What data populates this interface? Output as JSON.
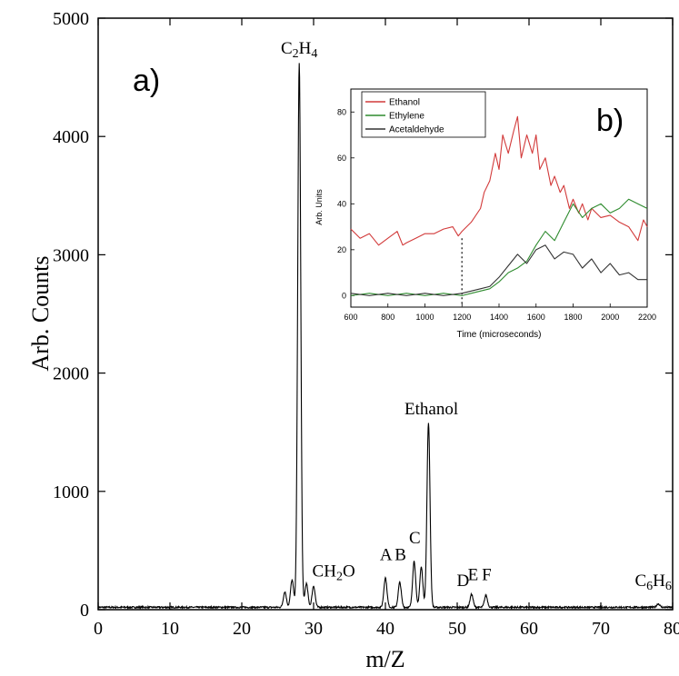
{
  "chart_data": [
    {
      "id": "main",
      "panel_label": "a)",
      "type": "line",
      "xlabel": "m/Z",
      "ylabel": "Arb. Counts",
      "xlim": [
        0,
        80
      ],
      "ylim": [
        0,
        5000
      ],
      "xticks": [
        0,
        10,
        20,
        30,
        40,
        50,
        60,
        70,
        80
      ],
      "yticks": [
        0,
        1000,
        2000,
        3000,
        4000,
        5000
      ],
      "grid": false,
      "baseline": 20,
      "peaks": [
        {
          "x": 26,
          "y": 150
        },
        {
          "x": 27,
          "y": 250
        },
        {
          "x": 28,
          "y": 4620
        },
        {
          "x": 29,
          "y": 220
        },
        {
          "x": 30,
          "y": 200
        },
        {
          "x": 40,
          "y": 270
        },
        {
          "x": 42,
          "y": 230
        },
        {
          "x": 44,
          "y": 410
        },
        {
          "x": 45,
          "y": 360
        },
        {
          "x": 46,
          "y": 1580
        },
        {
          "x": 52,
          "y": 130
        },
        {
          "x": 54,
          "y": 120
        },
        {
          "x": 78,
          "y": 50
        }
      ],
      "annotations": [
        {
          "key": "c2h4",
          "x": 28,
          "y": 4700,
          "parts": [
            {
              "t": "C"
            },
            {
              "t": "2",
              "sub": true
            },
            {
              "t": "H"
            },
            {
              "t": "4",
              "sub": true
            }
          ]
        },
        {
          "key": "ch2o",
          "x": 32.8,
          "y": 280,
          "parts": [
            {
              "t": "CH"
            },
            {
              "t": "2",
              "sub": true
            },
            {
              "t": "O"
            }
          ]
        },
        {
          "key": "ethanol",
          "x": 46.4,
          "y": 1650,
          "parts": [
            {
              "t": "Ethanol"
            }
          ]
        },
        {
          "key": "a",
          "x": 40.1,
          "y": 420,
          "parts": [
            {
              "t": "A"
            }
          ]
        },
        {
          "key": "b",
          "x": 42.1,
          "y": 420,
          "parts": [
            {
              "t": "B"
            }
          ]
        },
        {
          "key": "c",
          "x": 44.1,
          "y": 560,
          "parts": [
            {
              "t": "C"
            }
          ]
        },
        {
          "key": "d",
          "x": 50.8,
          "y": 200,
          "parts": [
            {
              "t": "D"
            }
          ]
        },
        {
          "key": "e",
          "x": 52.2,
          "y": 250,
          "parts": [
            {
              "t": "E"
            }
          ]
        },
        {
          "key": "f",
          "x": 54.1,
          "y": 250,
          "parts": [
            {
              "t": "F"
            }
          ]
        },
        {
          "key": "c6h6",
          "x": 77.3,
          "y": 200,
          "parts": [
            {
              "t": "C"
            },
            {
              "t": "6",
              "sub": true
            },
            {
              "t": "H"
            },
            {
              "t": "6",
              "sub": true
            }
          ]
        }
      ]
    },
    {
      "id": "inset",
      "panel_label": "b)",
      "type": "line",
      "xlabel": "Time (microseconds)",
      "ylabel": "Arb. Units",
      "xlim": [
        600,
        2200
      ],
      "ylim": [
        -5,
        90
      ],
      "xticks": [
        600,
        800,
        1000,
        1200,
        1400,
        1600,
        1800,
        2000,
        2200
      ],
      "yticks": [
        0,
        20,
        40,
        60,
        80
      ],
      "grid": false,
      "legend": "top-left",
      "marker_line_x": 1200,
      "series": [
        {
          "name": "Ethanol",
          "color": "#d23a3a",
          "x": [
            600,
            650,
            700,
            750,
            800,
            850,
            880,
            900,
            950,
            1000,
            1050,
            1100,
            1150,
            1180,
            1200,
            1250,
            1300,
            1320,
            1350,
            1380,
            1400,
            1420,
            1450,
            1480,
            1500,
            1520,
            1550,
            1580,
            1600,
            1620,
            1650,
            1680,
            1700,
            1730,
            1750,
            1780,
            1800,
            1830,
            1850,
            1880,
            1900,
            1950,
            2000,
            2050,
            2100,
            2150,
            2180,
            2200
          ],
          "y": [
            29,
            25,
            27,
            22,
            25,
            28,
            22,
            23,
            25,
            27,
            27,
            29,
            30,
            26,
            28,
            32,
            38,
            45,
            50,
            62,
            55,
            70,
            62,
            72,
            78,
            60,
            70,
            62,
            70,
            55,
            60,
            48,
            52,
            45,
            48,
            38,
            42,
            36,
            40,
            33,
            38,
            34,
            35,
            32,
            30,
            24,
            33,
            30
          ]
        },
        {
          "name": "Ethylene",
          "color": "#2e8b2e",
          "x": [
            600,
            700,
            800,
            900,
            1000,
            1100,
            1200,
            1250,
            1300,
            1350,
            1400,
            1450,
            1500,
            1550,
            1600,
            1650,
            1700,
            1750,
            1800,
            1850,
            1900,
            1950,
            2000,
            2050,
            2100,
            2150,
            2200
          ],
          "y": [
            0,
            1,
            0,
            1,
            0,
            1,
            0,
            1,
            2,
            3,
            6,
            10,
            12,
            15,
            22,
            28,
            24,
            32,
            40,
            34,
            38,
            40,
            36,
            38,
            42,
            40,
            38
          ]
        },
        {
          "name": "Acetaldehyde",
          "color": "#333333",
          "x": [
            600,
            700,
            800,
            900,
            1000,
            1100,
            1200,
            1250,
            1300,
            1350,
            1400,
            1450,
            1500,
            1550,
            1600,
            1650,
            1700,
            1750,
            1800,
            1850,
            1900,
            1950,
            2000,
            2050,
            2100,
            2150,
            2200
          ],
          "y": [
            1,
            0,
            1,
            0,
            1,
            0,
            1,
            2,
            3,
            4,
            8,
            13,
            18,
            14,
            20,
            22,
            16,
            19,
            18,
            12,
            16,
            10,
            14,
            9,
            10,
            7,
            7
          ]
        }
      ]
    }
  ]
}
